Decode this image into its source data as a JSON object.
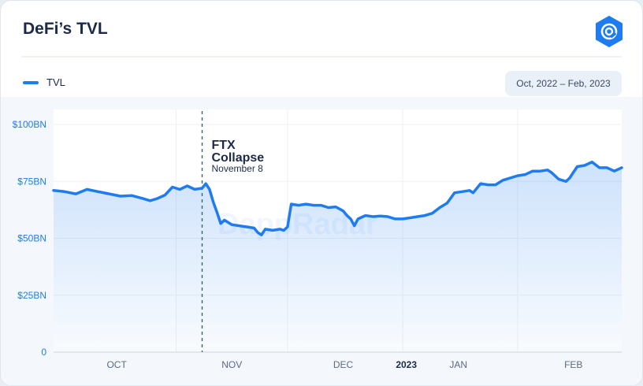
{
  "header": {
    "title": "DeFi’s TVL",
    "logo_icon": "dappradar-logo-icon"
  },
  "legend": {
    "label": "TVL",
    "color": "#1f7cf0"
  },
  "date_range": {
    "label": "Oct, 2022 – Feb, 2023"
  },
  "watermark": "DappRadar",
  "chart_data": {
    "type": "area",
    "title": "DeFi’s TVL",
    "series": [
      {
        "name": "TVL",
        "color": "#1f7cf0",
        "points": [
          [
            "2022-09-28",
            71.0
          ],
          [
            "2022-10-01",
            70.5
          ],
          [
            "2022-10-04",
            69.5
          ],
          [
            "2022-10-07",
            71.5
          ],
          [
            "2022-10-10",
            70.5
          ],
          [
            "2022-10-13",
            69.5
          ],
          [
            "2022-10-16",
            68.5
          ],
          [
            "2022-10-19",
            68.8
          ],
          [
            "2022-10-22",
            67.5
          ],
          [
            "2022-10-24",
            66.5
          ],
          [
            "2022-10-26",
            67.5
          ],
          [
            "2022-10-28",
            69.0
          ],
          [
            "2022-10-30",
            72.5
          ],
          [
            "2022-11-01",
            71.5
          ],
          [
            "2022-11-03",
            73.0
          ],
          [
            "2022-11-05",
            71.5
          ],
          [
            "2022-11-07",
            72.0
          ],
          [
            "2022-11-08",
            74.0
          ],
          [
            "2022-11-09",
            71.5
          ],
          [
            "2022-11-10",
            66.0
          ],
          [
            "2022-11-11",
            61.5
          ],
          [
            "2022-11-12",
            56.5
          ],
          [
            "2022-11-13",
            58.0
          ],
          [
            "2022-11-15",
            56.0
          ],
          [
            "2022-11-17",
            55.5
          ],
          [
            "2022-11-19",
            55.0
          ],
          [
            "2022-11-21",
            54.5
          ],
          [
            "2022-11-22",
            52.5
          ],
          [
            "2022-11-23",
            51.5
          ],
          [
            "2022-11-24",
            54.0
          ],
          [
            "2022-11-26",
            53.5
          ],
          [
            "2022-11-28",
            54.0
          ],
          [
            "2022-11-29",
            53.5
          ],
          [
            "2022-11-30",
            55.0
          ],
          [
            "2022-12-01",
            65.0
          ],
          [
            "2022-12-03",
            64.5
          ],
          [
            "2022-12-05",
            65.0
          ],
          [
            "2022-12-07",
            64.5
          ],
          [
            "2022-12-09",
            64.5
          ],
          [
            "2022-12-11",
            63.5
          ],
          [
            "2022-12-13",
            63.8
          ],
          [
            "2022-12-15",
            62.0
          ],
          [
            "2022-12-16",
            60.0
          ],
          [
            "2022-12-17",
            58.5
          ],
          [
            "2022-12-18",
            55.5
          ],
          [
            "2022-12-19",
            58.5
          ],
          [
            "2022-12-21",
            60.0
          ],
          [
            "2022-12-23",
            59.5
          ],
          [
            "2022-12-25",
            59.8
          ],
          [
            "2022-12-27",
            59.5
          ],
          [
            "2022-12-29",
            58.5
          ],
          [
            "2022-12-31",
            58.5
          ],
          [
            "2023-01-02",
            59.0
          ],
          [
            "2023-01-04",
            59.5
          ],
          [
            "2023-01-06",
            60.0
          ],
          [
            "2023-01-08",
            61.0
          ],
          [
            "2023-01-10",
            63.5
          ],
          [
            "2023-01-12",
            65.5
          ],
          [
            "2023-01-14",
            70.0
          ],
          [
            "2023-01-16",
            70.5
          ],
          [
            "2023-01-18",
            71.0
          ],
          [
            "2023-01-19",
            70.0
          ],
          [
            "2023-01-21",
            74.0
          ],
          [
            "2023-01-23",
            73.5
          ],
          [
            "2023-01-25",
            73.5
          ],
          [
            "2023-01-27",
            75.5
          ],
          [
            "2023-01-29",
            76.5
          ],
          [
            "2023-01-31",
            77.5
          ],
          [
            "2023-02-02",
            78.0
          ],
          [
            "2023-02-04",
            79.5
          ],
          [
            "2023-02-06",
            79.5
          ],
          [
            "2023-02-08",
            80.0
          ],
          [
            "2023-02-09",
            79.0
          ],
          [
            "2023-02-11",
            76.0
          ],
          [
            "2023-02-13",
            75.0
          ],
          [
            "2023-02-14",
            76.5
          ],
          [
            "2023-02-16",
            81.5
          ],
          [
            "2023-02-18",
            82.0
          ],
          [
            "2023-02-20",
            83.5
          ],
          [
            "2023-02-22",
            81.0
          ],
          [
            "2023-02-24",
            81.0
          ],
          [
            "2023-02-26",
            79.5
          ],
          [
            "2023-02-28",
            81.0
          ]
        ]
      }
    ],
    "x_axis": {
      "ticks": [
        {
          "date": "2022-10-15",
          "label": "OCT",
          "bold": false
        },
        {
          "date": "2022-11-15",
          "label": "NOV",
          "bold": false
        },
        {
          "date": "2022-12-15",
          "label": "DEC",
          "bold": false
        },
        {
          "date": "2023-01-01",
          "label": "2023",
          "bold": true
        },
        {
          "date": "2023-01-15",
          "label": "JAN",
          "bold": false
        },
        {
          "date": "2023-02-15",
          "label": "FEB",
          "bold": false
        }
      ],
      "gridlines": [
        "2022-10-31",
        "2022-11-30",
        "2022-12-31",
        "2023-01-31"
      ],
      "range": [
        "2022-09-28",
        "2023-02-28"
      ]
    },
    "y_axis": {
      "ticks": [
        {
          "value": 0,
          "label": "0"
        },
        {
          "value": 25,
          "label": "$25BN"
        },
        {
          "value": 50,
          "label": "$50BN"
        },
        {
          "value": 75,
          "label": "$75BN"
        },
        {
          "value": 100,
          "label": "$100BN"
        }
      ],
      "range": [
        0,
        100
      ]
    },
    "grid": true,
    "annotations": [
      {
        "date": "2022-11-07",
        "title_line1": "FTX",
        "title_line2": "Collapse",
        "subtitle": "November 8"
      }
    ]
  }
}
